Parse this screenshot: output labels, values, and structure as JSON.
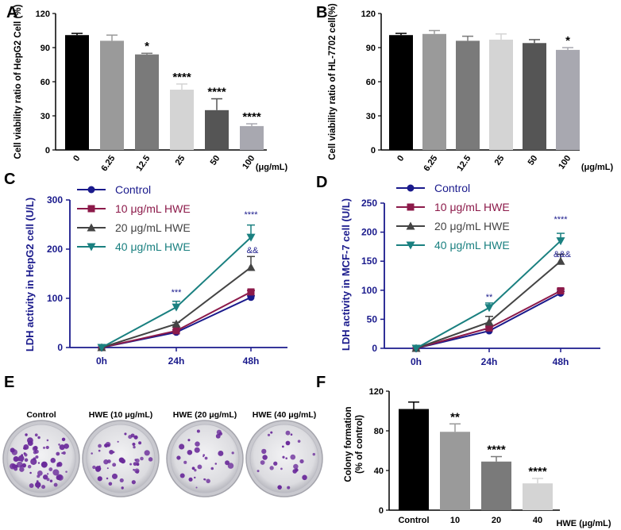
{
  "figure": {
    "panels": [
      "A",
      "B",
      "C",
      "D",
      "E",
      "F"
    ]
  },
  "chart_data": [
    {
      "panel": "A",
      "type": "bar",
      "ylabel": "Cell viability ratio of HepG2 Cell (%)",
      "unit_label": "(μg/mL)",
      "categories": [
        "0",
        "6.25",
        "12.5",
        "25",
        "50",
        "100"
      ],
      "values": [
        101,
        96,
        84,
        53,
        35,
        21
      ],
      "errors": [
        1.5,
        5,
        1,
        5,
        10,
        2
      ],
      "significance": [
        "",
        "",
        "*",
        "****",
        "****",
        "****"
      ],
      "colors": [
        "#000000",
        "#9a9a9a",
        "#7a7a7a",
        "#d4d4d4",
        "#555555",
        "#a8a8b0"
      ],
      "ylim": [
        0,
        120
      ],
      "yticks": [
        "0",
        "30",
        "60",
        "90",
        "120"
      ]
    },
    {
      "panel": "B",
      "type": "bar",
      "ylabel": "Cell viability ratio of HL-7702 cell(%)",
      "unit_label": "(μg/mL)",
      "categories": [
        "0",
        "6.25",
        "12.5",
        "25",
        "50",
        "100"
      ],
      "values": [
        101,
        102,
        96,
        97,
        94,
        88
      ],
      "errors": [
        1.5,
        3,
        4,
        5,
        3,
        2
      ],
      "significance": [
        "",
        "",
        "",
        "",
        "",
        "*"
      ],
      "colors": [
        "#000000",
        "#9a9a9a",
        "#7a7a7a",
        "#d4d4d4",
        "#555555",
        "#a8a8b0"
      ],
      "ylim": [
        0,
        120
      ],
      "yticks": [
        "0",
        "30",
        "60",
        "90",
        "120"
      ]
    },
    {
      "panel": "C",
      "type": "line",
      "ylabel": "LDH activity in HepG2 cell (U/L)",
      "x": [
        "0h",
        "24h",
        "48h"
      ],
      "ylim": [
        0,
        300
      ],
      "yticks": [
        "0",
        "100",
        "200",
        "300"
      ],
      "series": [
        {
          "name": "Control",
          "values": [
            0,
            31,
            102
          ],
          "errors": [
            0,
            2,
            3
          ],
          "color": "#1a1a8c",
          "marker": "circle"
        },
        {
          "name": "10 μg/mL HWE",
          "values": [
            0,
            34,
            113
          ],
          "errors": [
            0,
            2,
            3
          ],
          "color": "#8c1a4a",
          "marker": "square"
        },
        {
          "name": "20 μg/mL HWE",
          "values": [
            0,
            48,
            163
          ],
          "errors": [
            0,
            3,
            22
          ],
          "color": "#444444",
          "marker": "triangle-up"
        },
        {
          "name": "40 μg/mL HWE",
          "values": [
            0,
            82,
            224
          ],
          "errors": [
            0,
            12,
            25
          ],
          "color": "#1a8080",
          "marker": "triangle-down"
        }
      ],
      "annotations": [
        "***",
        "****",
        "&&"
      ]
    },
    {
      "panel": "D",
      "type": "line",
      "ylabel": "LDH activity in MCF-7 cell (U/L)",
      "x": [
        "0h",
        "24h",
        "48h"
      ],
      "ylim": [
        0,
        250
      ],
      "yticks": [
        "0",
        "50",
        "100",
        "150",
        "200",
        "250"
      ],
      "series": [
        {
          "name": "Control",
          "values": [
            0,
            30,
            95
          ],
          "errors": [
            0,
            2,
            3
          ],
          "color": "#1a1a8c",
          "marker": "circle"
        },
        {
          "name": "10 μg/mL HWE",
          "values": [
            0,
            35,
            99
          ],
          "errors": [
            0,
            2,
            3
          ],
          "color": "#8c1a4a",
          "marker": "square"
        },
        {
          "name": "20 μg/mL HWE",
          "values": [
            0,
            45,
            150
          ],
          "errors": [
            0,
            10,
            12
          ],
          "color": "#444444",
          "marker": "triangle-up"
        },
        {
          "name": "40 μg/mL HWE",
          "values": [
            0,
            70,
            185
          ],
          "errors": [
            0,
            8,
            13
          ],
          "color": "#1a8080",
          "marker": "triangle-down"
        }
      ],
      "annotations": [
        "**",
        "****",
        "&&&"
      ]
    },
    {
      "panel": "F",
      "type": "bar",
      "ylabel": "Colony formation (% of control)",
      "unit_label": "HWE (μg/mL)",
      "categories": [
        "Control",
        "10",
        "20",
        "40"
      ],
      "values": [
        102,
        79,
        49,
        27
      ],
      "errors": [
        7,
        8,
        5,
        5
      ],
      "significance": [
        "",
        "**",
        "****",
        "****"
      ],
      "colors": [
        "#000000",
        "#9a9a9a",
        "#7a7a7a",
        "#d4d4d4"
      ],
      "ylim": [
        0,
        120
      ],
      "yticks": [
        "0",
        "40",
        "80",
        "120"
      ]
    }
  ],
  "colony_assay": {
    "labels": [
      "Control",
      "HWE (10 μg/mL)",
      "HWE (20 μg/mL)",
      "HWE (40 μg/mL)"
    ],
    "colony_counts": [
      70,
      45,
      30,
      25
    ]
  }
}
